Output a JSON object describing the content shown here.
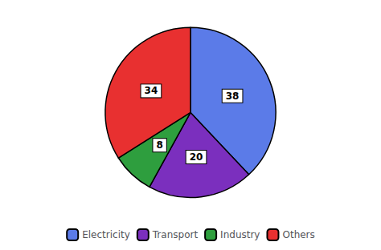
{
  "chart_data": {
    "type": "pie",
    "categories": [
      "Electricity",
      "Transport",
      "Industry",
      "Others"
    ],
    "values": [
      38,
      20,
      8,
      34
    ],
    "colors": [
      "#5B7BE8",
      "#7B2FBE",
      "#2E9E3E",
      "#E83030"
    ],
    "data_labels": true,
    "legend": "bottom"
  }
}
